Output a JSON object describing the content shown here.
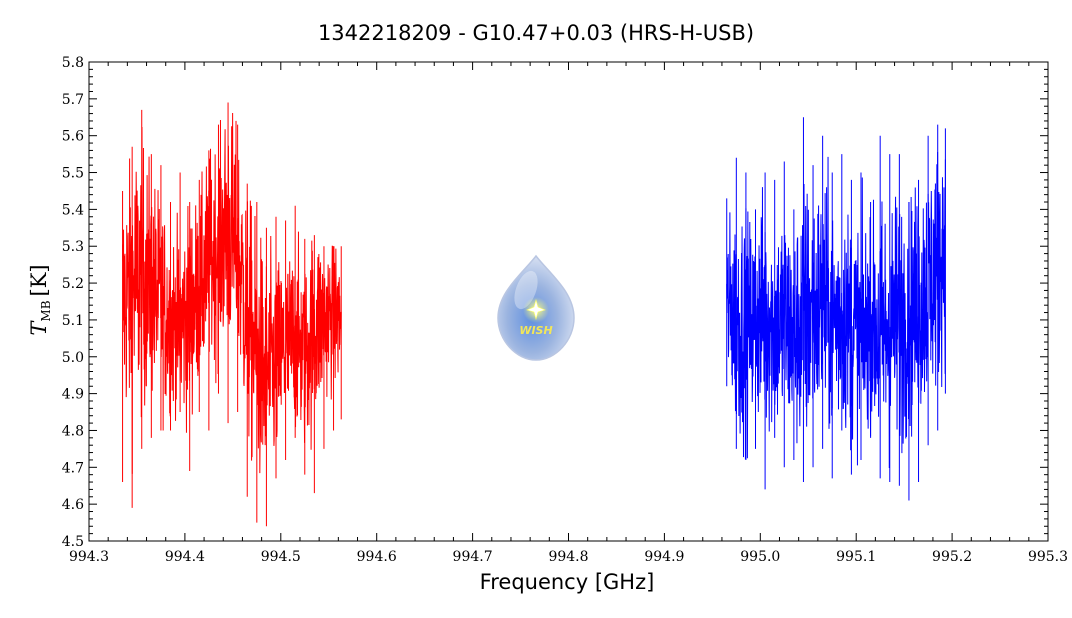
{
  "chart_data": {
    "type": "line",
    "title": "1342218209 - G10.47+0.03 (HRS-H-USB)",
    "xlabel": "Frequency [GHz]",
    "ylabel": {
      "symbol": "T",
      "subscript": "MB",
      "unit": "[K]"
    },
    "xlim": [
      994.3,
      995.3
    ],
    "ylim": [
      4.5,
      5.8
    ],
    "xticks": [
      "994.3",
      "994.4",
      "994.5",
      "994.6",
      "994.7",
      "994.8",
      "994.9",
      "995.0",
      "995.1",
      "995.2",
      "995.3"
    ],
    "yticks": [
      "4.5",
      "4.6",
      "4.7",
      "4.8",
      "4.9",
      "5.0",
      "5.1",
      "5.2",
      "5.3",
      "5.4",
      "5.5",
      "5.6",
      "5.7",
      "5.8"
    ],
    "grid": false,
    "series": [
      {
        "color": "#ff0000",
        "x": [
          994.335,
          994.345,
          994.355,
          994.365,
          994.375,
          994.385,
          994.395,
          994.405,
          994.415,
          994.425,
          994.435,
          994.445,
          994.455,
          994.465,
          994.475,
          994.485,
          994.495,
          994.505,
          994.515,
          994.525,
          994.535,
          994.545,
          994.555,
          994.563
        ],
        "y": [
          5.15,
          5.18,
          5.22,
          5.2,
          5.14,
          5.1,
          5.08,
          5.12,
          5.18,
          5.25,
          5.3,
          5.35,
          5.3,
          5.1,
          5.0,
          4.95,
          4.98,
          5.02,
          5.05,
          5.0,
          5.08,
          5.1,
          5.12,
          5.1
        ],
        "ymin": [
          4.66,
          4.59,
          4.75,
          4.78,
          4.8,
          4.8,
          4.85,
          4.69,
          4.85,
          4.8,
          4.9,
          4.82,
          4.85,
          4.62,
          4.55,
          4.54,
          4.67,
          4.72,
          4.78,
          4.68,
          4.63,
          4.75,
          4.8,
          4.83
        ],
        "ymax": [
          5.45,
          5.57,
          5.67,
          5.55,
          5.52,
          5.42,
          5.5,
          5.42,
          5.48,
          5.56,
          5.63,
          5.69,
          5.63,
          5.47,
          5.42,
          5.35,
          5.38,
          5.37,
          5.41,
          5.32,
          5.33,
          5.3,
          5.3,
          5.3
        ]
      },
      {
        "color": "#0000ff",
        "x": [
          994.965,
          994.975,
          994.985,
          994.995,
          995.005,
          995.015,
          995.025,
          995.035,
          995.045,
          995.055,
          995.065,
          995.075,
          995.085,
          995.095,
          995.105,
          995.115,
          995.125,
          995.135,
          995.145,
          995.155,
          995.165,
          995.175,
          995.185,
          995.193
        ],
        "y": [
          5.15,
          5.1,
          5.08,
          5.1,
          5.12,
          5.08,
          5.1,
          5.05,
          5.1,
          5.12,
          5.15,
          5.1,
          5.12,
          5.08,
          5.05,
          5.1,
          5.05,
          5.08,
          5.1,
          5.12,
          5.15,
          5.2,
          5.25,
          5.3
        ],
        "ymin": [
          4.92,
          4.75,
          4.72,
          4.75,
          4.64,
          4.78,
          4.7,
          4.72,
          4.66,
          4.7,
          4.75,
          4.67,
          4.8,
          4.68,
          4.72,
          4.78,
          4.67,
          4.66,
          4.65,
          4.61,
          4.66,
          4.76,
          4.8,
          4.9
        ],
        "ymax": [
          5.43,
          5.54,
          5.5,
          5.4,
          5.5,
          5.48,
          5.53,
          5.4,
          5.65,
          5.52,
          5.6,
          5.5,
          5.55,
          5.48,
          5.5,
          5.42,
          5.6,
          5.55,
          5.55,
          5.42,
          5.48,
          5.6,
          5.63,
          5.62
        ]
      }
    ]
  },
  "logo": {
    "name": "wish-logo",
    "text": "WISH"
  }
}
